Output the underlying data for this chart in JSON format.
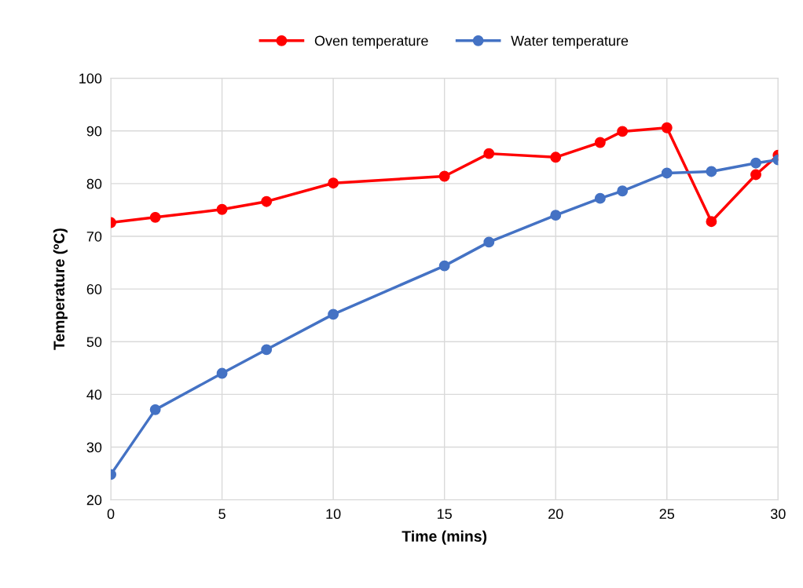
{
  "chart_data": {
    "type": "line",
    "xlabel": "Time (mins)",
    "ylabel": "Temperature (ºC)",
    "x": [
      0,
      2,
      5,
      7,
      10,
      15,
      17,
      20,
      22,
      23,
      25,
      27,
      29,
      30
    ],
    "series": [
      {
        "name": "Oven temperature",
        "color": "#ff0000",
        "values": [
          72.6,
          73.6,
          75.1,
          76.6,
          80.1,
          81.4,
          85.7,
          85.0,
          87.8,
          89.9,
          90.6,
          72.8,
          81.7,
          85.4
        ]
      },
      {
        "name": "Water temperature",
        "color": "#4472c4",
        "values": [
          24.8,
          37.1,
          44.0,
          48.5,
          55.2,
          64.4,
          68.9,
          74.0,
          77.2,
          78.6,
          82.0,
          82.3,
          83.9,
          84.5
        ]
      }
    ],
    "xlim": [
      0,
      30
    ],
    "xticks": [
      0,
      5,
      10,
      15,
      20,
      25,
      30
    ],
    "ylim": [
      20,
      100
    ],
    "yticks": [
      20,
      30,
      40,
      50,
      60,
      70,
      80,
      90,
      100
    ],
    "grid": true,
    "legend": "top",
    "marker": "circle",
    "line_style": "solid"
  }
}
